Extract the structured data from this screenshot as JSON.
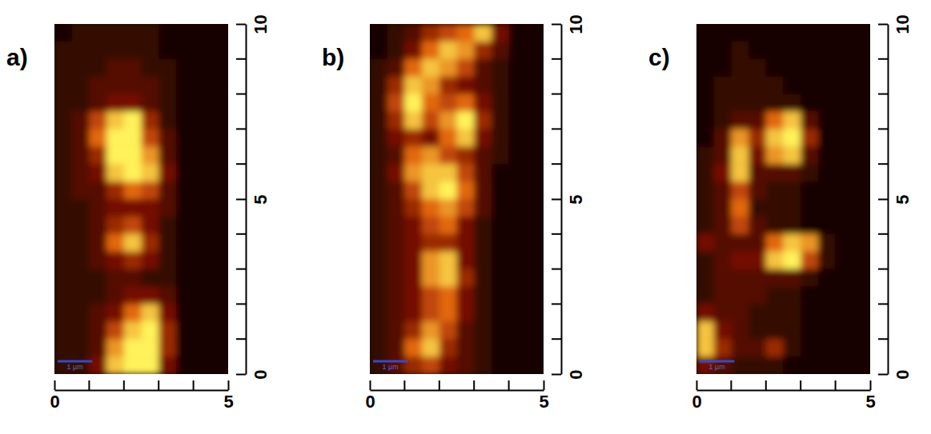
{
  "chart_data": [
    {
      "type": "heatmap",
      "title": "a)",
      "xlim": [
        0,
        5
      ],
      "ylim": [
        0,
        10
      ],
      "xticks": [
        0,
        5
      ],
      "xminor_ticks": [
        1,
        2,
        3,
        4
      ],
      "yticks": [
        0,
        5,
        10
      ],
      "yminor_ticks": [
        1,
        2,
        3,
        4,
        6,
        7,
        8,
        9
      ],
      "zlim": [
        0,
        9
      ],
      "scale_bar": {
        "label": "1 µm",
        "length": 1
      },
      "x": [
        0.25,
        0.75,
        1.25,
        1.75,
        2.25,
        2.75,
        3.25,
        3.75,
        4.25,
        4.75
      ],
      "y": [
        9.75,
        9.25,
        8.75,
        8.25,
        7.75,
        7.25,
        6.75,
        6.25,
        5.75,
        5.25,
        4.75,
        4.25,
        3.75,
        3.25,
        2.75,
        2.25,
        1.75,
        1.25,
        0.75,
        0.25
      ],
      "z": [
        [
          0,
          1,
          1,
          1,
          1,
          1,
          0,
          0,
          0,
          0
        ],
        [
          1,
          1,
          1,
          1,
          1,
          1,
          0,
          0,
          0,
          0
        ],
        [
          1,
          1,
          1,
          2,
          2,
          1,
          1,
          0,
          0,
          0
        ],
        [
          1,
          1,
          2,
          2,
          2,
          2,
          1,
          0,
          0,
          0
        ],
        [
          1,
          1,
          2,
          3,
          3,
          2,
          1,
          0,
          0,
          0
        ],
        [
          1,
          2,
          5,
          8,
          9,
          4,
          1,
          0,
          0,
          0
        ],
        [
          1,
          2,
          6,
          9,
          9,
          5,
          2,
          0,
          0,
          0
        ],
        [
          1,
          2,
          4,
          9,
          9,
          7,
          2,
          0,
          0,
          0
        ],
        [
          1,
          2,
          3,
          8,
          9,
          8,
          3,
          0,
          0,
          0
        ],
        [
          1,
          2,
          2,
          4,
          6,
          5,
          2,
          0,
          0,
          0
        ],
        [
          1,
          1,
          2,
          3,
          3,
          3,
          2,
          0,
          0,
          0
        ],
        [
          1,
          1,
          2,
          4,
          5,
          3,
          1,
          0,
          0,
          0
        ],
        [
          1,
          1,
          2,
          6,
          8,
          4,
          1,
          0,
          0,
          0
        ],
        [
          1,
          1,
          2,
          3,
          4,
          3,
          1,
          0,
          0,
          0
        ],
        [
          1,
          1,
          1,
          2,
          2,
          1,
          1,
          0,
          0,
          0
        ],
        [
          1,
          1,
          1,
          2,
          3,
          3,
          2,
          0,
          0,
          0
        ],
        [
          1,
          1,
          2,
          3,
          6,
          8,
          3,
          0,
          0,
          0
        ],
        [
          1,
          1,
          2,
          5,
          8,
          9,
          4,
          0,
          0,
          0
        ],
        [
          1,
          1,
          2,
          7,
          9,
          9,
          4,
          0,
          0,
          0
        ],
        [
          1,
          1,
          3,
          8,
          9,
          9,
          3,
          0,
          0,
          0
        ]
      ]
    },
    {
      "type": "heatmap",
      "title": "b)",
      "xlim": [
        0,
        5
      ],
      "ylim": [
        0,
        10
      ],
      "xticks": [
        0,
        5
      ],
      "xminor_ticks": [
        1,
        2,
        3,
        4
      ],
      "yticks": [
        0,
        5,
        10
      ],
      "yminor_ticks": [
        1,
        2,
        3,
        4,
        6,
        7,
        8,
        9
      ],
      "zlim": [
        0,
        9
      ],
      "scale_bar": {
        "label": "1 µm",
        "length": 1
      },
      "x": [
        0.25,
        0.75,
        1.25,
        1.75,
        2.25,
        2.75,
        3.25,
        3.75,
        4.25,
        4.75
      ],
      "y": [
        9.75,
        9.25,
        8.75,
        8.25,
        7.75,
        7.25,
        6.75,
        6.25,
        5.75,
        5.25,
        4.75,
        4.25,
        3.75,
        3.25,
        2.75,
        2.25,
        1.75,
        1.25,
        0.75,
        0.25
      ],
      "z": [
        [
          0,
          1,
          2,
          4,
          5,
          6,
          8,
          3,
          0,
          0
        ],
        [
          0,
          1,
          3,
          6,
          8,
          7,
          4,
          2,
          0,
          0
        ],
        [
          1,
          2,
          6,
          8,
          7,
          5,
          2,
          1,
          0,
          0
        ],
        [
          1,
          4,
          8,
          7,
          4,
          3,
          2,
          1,
          0,
          0
        ],
        [
          1,
          5,
          9,
          6,
          5,
          6,
          3,
          1,
          0,
          0
        ],
        [
          1,
          4,
          8,
          5,
          7,
          9,
          4,
          1,
          0,
          0
        ],
        [
          1,
          3,
          4,
          3,
          6,
          8,
          3,
          1,
          0,
          0
        ],
        [
          1,
          2,
          6,
          7,
          5,
          4,
          2,
          1,
          0,
          0
        ],
        [
          1,
          3,
          7,
          8,
          8,
          5,
          2,
          0,
          0,
          0
        ],
        [
          1,
          2,
          5,
          8,
          9,
          6,
          2,
          0,
          0,
          0
        ],
        [
          1,
          2,
          4,
          6,
          7,
          5,
          2,
          0,
          0,
          0
        ],
        [
          1,
          2,
          3,
          5,
          6,
          3,
          1,
          0,
          0,
          0
        ],
        [
          1,
          2,
          3,
          4,
          4,
          3,
          1,
          0,
          0,
          0
        ],
        [
          1,
          2,
          3,
          7,
          8,
          3,
          1,
          0,
          0,
          0
        ],
        [
          1,
          2,
          3,
          7,
          8,
          4,
          1,
          0,
          0,
          0
        ],
        [
          1,
          2,
          3,
          5,
          6,
          3,
          1,
          0,
          0,
          0
        ],
        [
          1,
          2,
          3,
          5,
          6,
          3,
          1,
          0,
          0,
          0
        ],
        [
          1,
          2,
          4,
          7,
          5,
          2,
          1,
          0,
          0,
          0
        ],
        [
          1,
          2,
          6,
          8,
          4,
          2,
          1,
          0,
          0,
          0
        ],
        [
          1,
          2,
          4,
          5,
          3,
          2,
          1,
          0,
          0,
          0
        ]
      ]
    },
    {
      "type": "heatmap",
      "title": "c)",
      "xlim": [
        0,
        5
      ],
      "ylim": [
        0,
        10
      ],
      "xticks": [
        0,
        5
      ],
      "xminor_ticks": [
        1,
        2,
        3,
        4
      ],
      "yticks": [
        0,
        5,
        10
      ],
      "yminor_ticks": [
        1,
        2,
        3,
        4,
        6,
        7,
        8,
        9
      ],
      "zlim": [
        0,
        9
      ],
      "scale_bar": {
        "label": "1 µm",
        "length": 1
      },
      "x": [
        0.25,
        0.75,
        1.25,
        1.75,
        2.25,
        2.75,
        3.25,
        3.75,
        4.25,
        4.75
      ],
      "y": [
        9.75,
        9.25,
        8.75,
        8.25,
        7.75,
        7.25,
        6.75,
        6.25,
        5.75,
        5.25,
        4.75,
        4.25,
        3.75,
        3.25,
        2.75,
        2.25,
        1.75,
        1.25,
        0.75,
        0.25
      ],
      "z": [
        [
          0,
          0,
          0,
          0,
          0,
          0,
          0,
          0,
          0,
          0
        ],
        [
          0,
          0,
          1,
          0,
          0,
          0,
          0,
          0,
          0,
          0
        ],
        [
          0,
          0,
          1,
          1,
          0,
          0,
          0,
          0,
          0,
          0
        ],
        [
          0,
          1,
          1,
          1,
          1,
          0,
          0,
          0,
          0,
          0
        ],
        [
          0,
          1,
          1,
          1,
          1,
          1,
          0,
          0,
          0,
          0
        ],
        [
          0,
          1,
          2,
          2,
          6,
          8,
          2,
          0,
          0,
          0
        ],
        [
          0,
          2,
          7,
          4,
          8,
          9,
          4,
          0,
          0,
          0
        ],
        [
          1,
          2,
          8,
          3,
          7,
          8,
          2,
          0,
          0,
          0
        ],
        [
          1,
          3,
          8,
          2,
          2,
          2,
          1,
          0,
          0,
          0
        ],
        [
          1,
          2,
          5,
          2,
          1,
          1,
          0,
          0,
          0,
          0
        ],
        [
          1,
          2,
          6,
          1,
          1,
          1,
          0,
          0,
          0,
          0
        ],
        [
          1,
          2,
          5,
          2,
          1,
          1,
          0,
          0,
          0,
          0
        ],
        [
          3,
          2,
          2,
          2,
          6,
          8,
          7,
          1,
          0,
          0
        ],
        [
          1,
          2,
          3,
          3,
          8,
          9,
          5,
          1,
          0,
          0
        ],
        [
          1,
          2,
          2,
          2,
          2,
          2,
          1,
          0,
          0,
          0
        ],
        [
          1,
          2,
          2,
          2,
          1,
          1,
          0,
          0,
          0,
          0
        ],
        [
          3,
          2,
          2,
          1,
          1,
          1,
          0,
          0,
          0,
          0
        ],
        [
          8,
          3,
          2,
          1,
          1,
          1,
          0,
          0,
          0,
          0
        ],
        [
          8,
          4,
          2,
          2,
          4,
          1,
          0,
          0,
          0,
          0
        ],
        [
          3,
          2,
          1,
          1,
          1,
          0,
          0,
          0,
          0,
          0
        ]
      ]
    }
  ]
}
